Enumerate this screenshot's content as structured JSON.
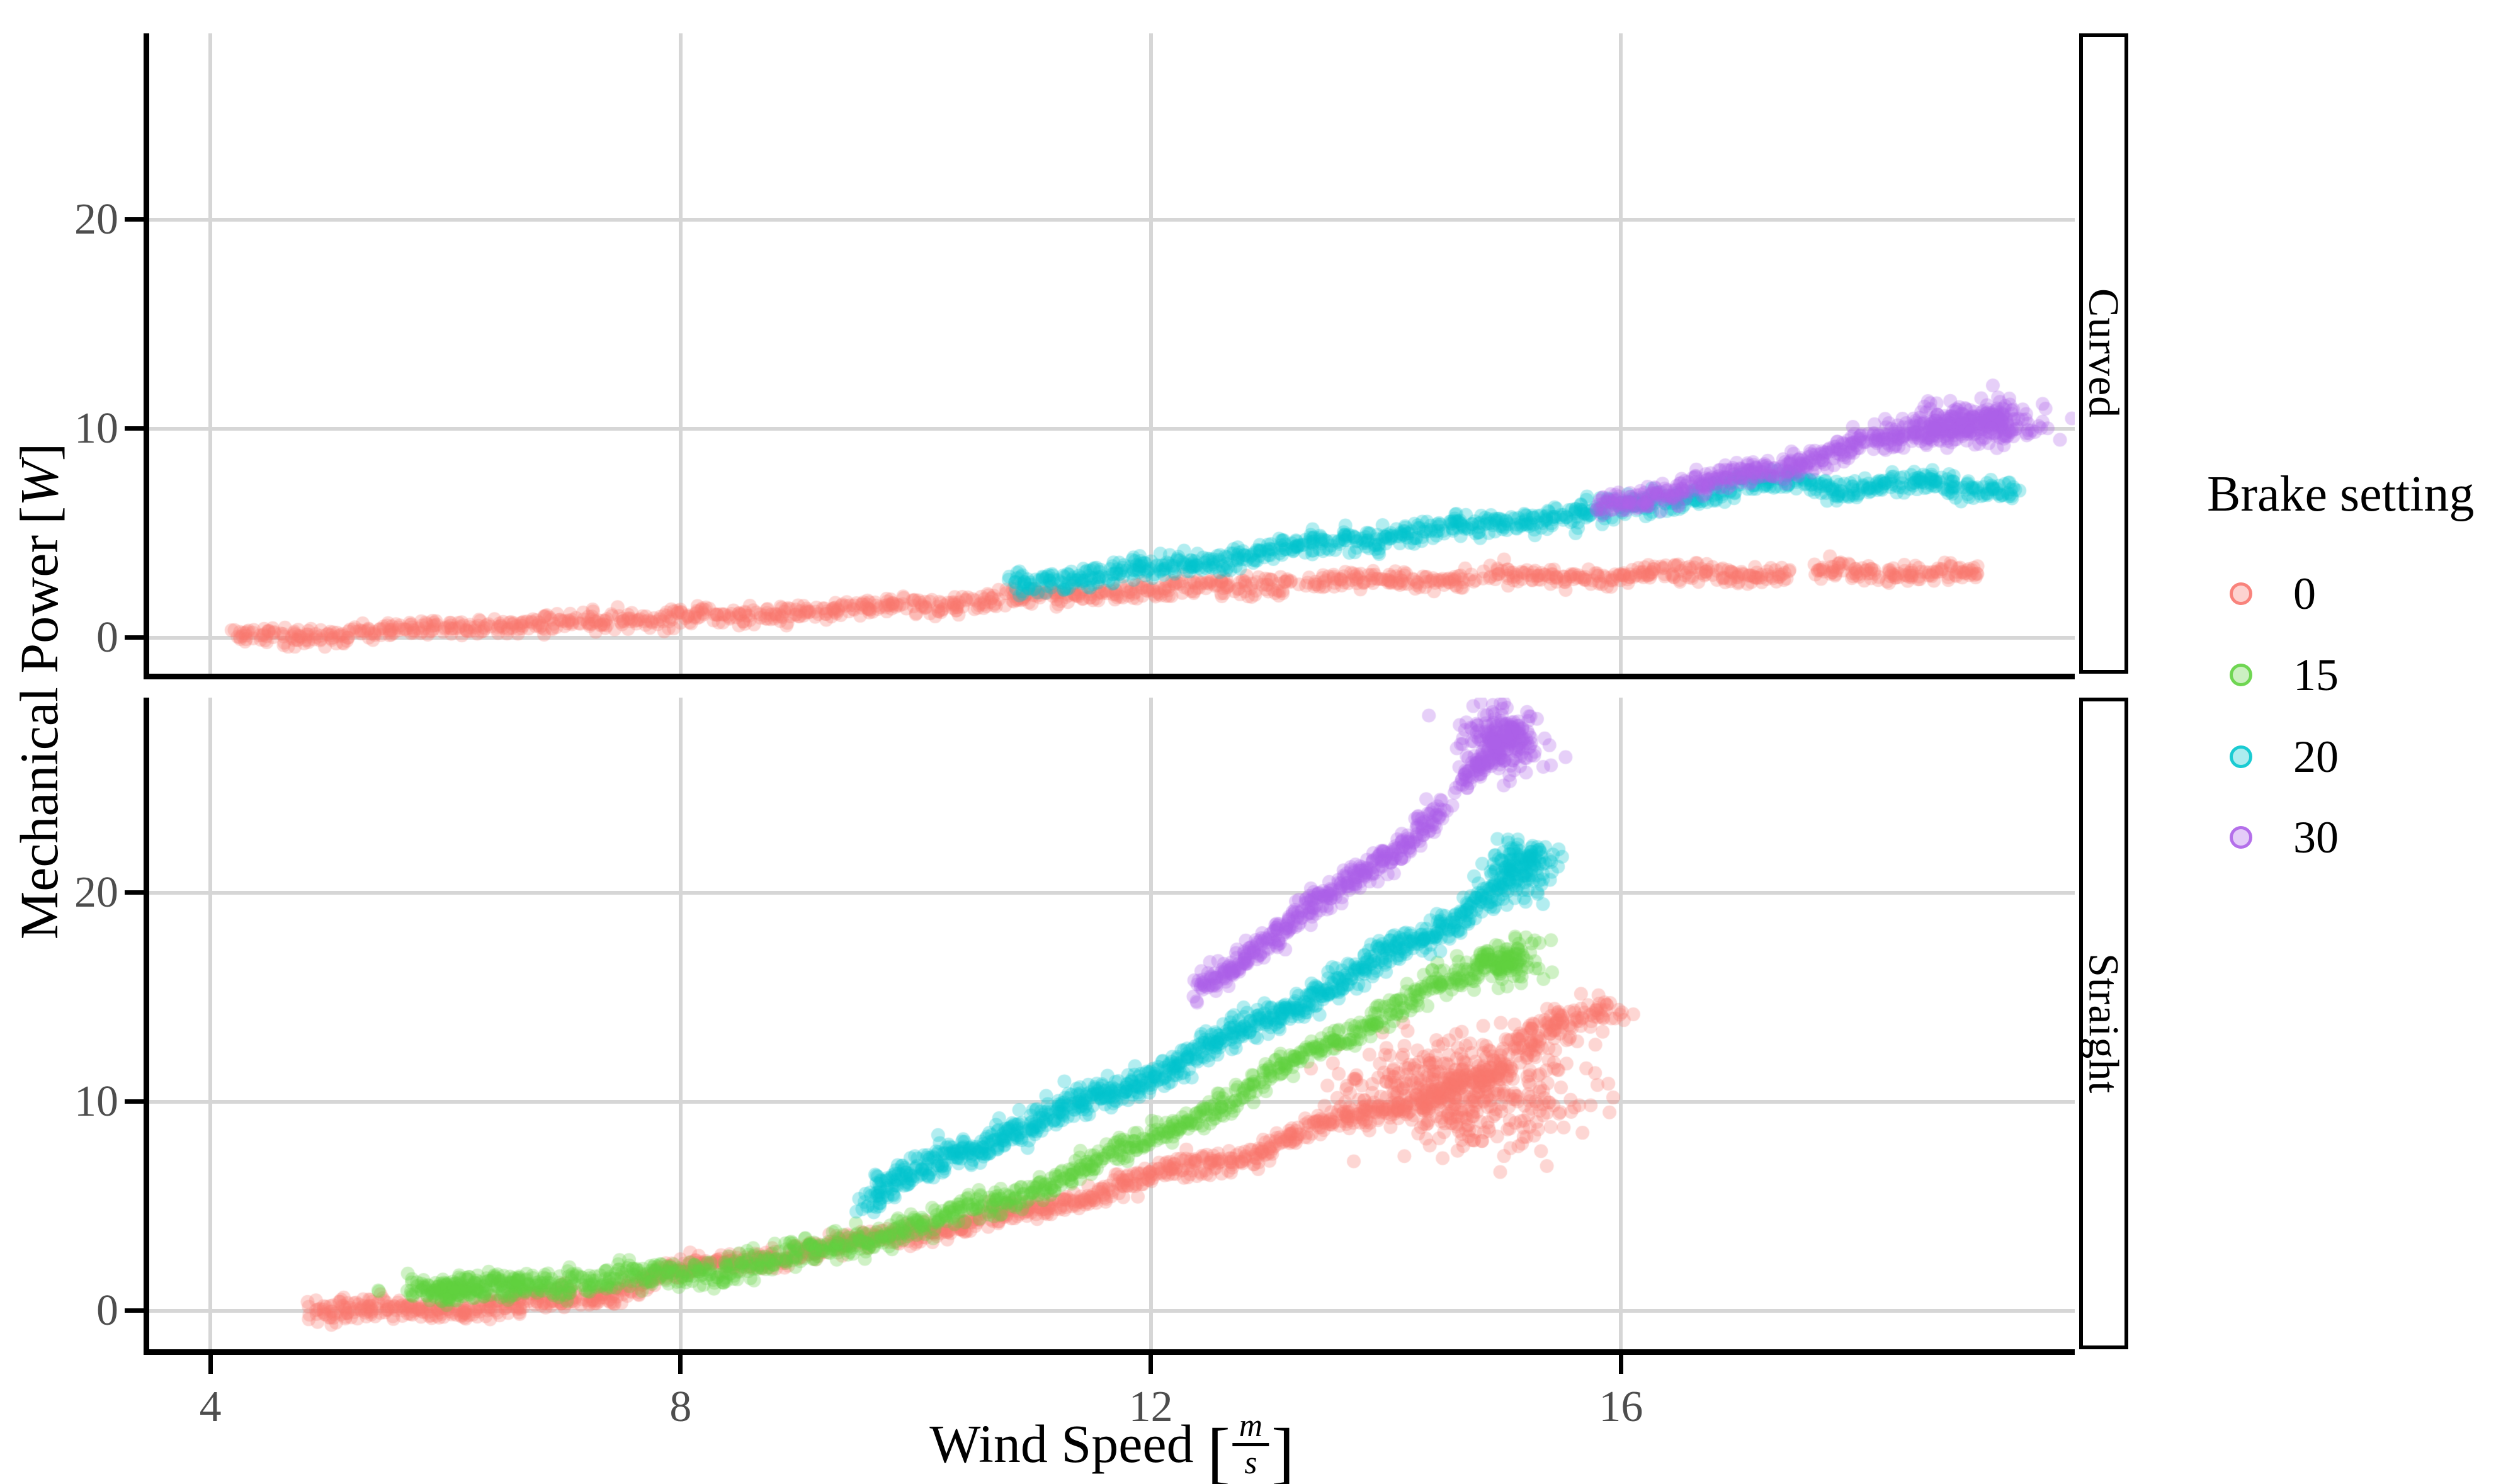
{
  "figure": {
    "y_axis_title": {
      "prefix": "Mechanical Power",
      "unit": "W"
    },
    "x_axis_title": {
      "prefix": "Wind Speed",
      "unit_numerator": "m",
      "unit_denominator": "s"
    },
    "legend_title": "Brake setting"
  },
  "chart_data": {
    "type": "scatter",
    "title": "",
    "xlabel": "Wind Speed [m/s]",
    "ylabel": "Mechanical Power [W]",
    "legend_title": "Brake setting",
    "legend_position": "right",
    "grid": "major",
    "x_ticks": [
      4,
      8,
      12,
      16
    ],
    "y_ticks": [
      0,
      10,
      20
    ],
    "xlim": [
      3.48,
      19.86
    ],
    "legend_items": [
      {
        "label": "0",
        "color": "#F8766D"
      },
      {
        "label": "15",
        "color": "#5FD13E"
      },
      {
        "label": "20",
        "color": "#00C5CC"
      },
      {
        "label": "30",
        "color": "#AC5FE8"
      }
    ],
    "facets": [
      {
        "label": "Curved",
        "ylim": [
          -1.72,
          28.9
        ],
        "series": [
          {
            "name": "0",
            "color": "#F8766D",
            "n": 1300,
            "spread": 0.22,
            "anchors": [
              [
                4.2,
                0.0
              ],
              [
                5.0,
                0.2
              ],
              [
                6.0,
                0.45
              ],
              [
                7.0,
                0.7
              ],
              [
                8.0,
                0.95
              ],
              [
                9.0,
                1.25
              ],
              [
                10.0,
                1.6
              ],
              [
                11.0,
                1.95
              ],
              [
                12.0,
                2.3
              ],
              [
                13.0,
                2.55
              ],
              [
                14.0,
                2.75
              ],
              [
                15.0,
                2.9
              ],
              [
                16.0,
                3.0
              ],
              [
                17.0,
                3.05
              ],
              [
                18.0,
                3.1
              ],
              [
                19.05,
                3.15
              ]
            ],
            "gaps": [
              [
                13.18,
                13.34
              ],
              [
                14.72,
                14.86
              ],
              [
                17.42,
                17.62
              ]
            ],
            "clusters": []
          },
          {
            "name": "20",
            "color": "#00C5CC",
            "n": 950,
            "spread": 0.26,
            "anchors": [
              [
                10.8,
                2.6
              ],
              [
                11.4,
                2.95
              ],
              [
                12.0,
                3.3
              ],
              [
                13.0,
                4.05
              ],
              [
                14.0,
                4.85
              ],
              [
                15.0,
                5.5
              ],
              [
                16.0,
                6.15
              ],
              [
                16.6,
                6.75
              ],
              [
                17.3,
                7.55
              ],
              [
                17.9,
                7.05
              ],
              [
                18.4,
                7.45
              ],
              [
                18.9,
                7.1
              ],
              [
                19.35,
                7.3
              ]
            ],
            "gaps": [],
            "clusters": []
          },
          {
            "name": "30",
            "color": "#AC5FE8",
            "n": 520,
            "spread": 0.27,
            "anchors": [
              [
                15.8,
                6.3
              ],
              [
                16.4,
                6.9
              ],
              [
                17.0,
                7.7
              ],
              [
                17.6,
                8.6
              ],
              [
                18.1,
                9.3
              ],
              [
                18.6,
                9.9
              ],
              [
                19.0,
                10.3
              ],
              [
                19.3,
                10.55
              ]
            ],
            "gaps": [],
            "clusters": [
              {
                "cx": 18.95,
                "cy": 10.25,
                "rx": 0.33,
                "ry": 0.5,
                "n": 200
              }
            ]
          }
        ]
      },
      {
        "label": "Straight",
        "ylim": [
          -1.84,
          29.33
        ],
        "series": [
          {
            "name": "0",
            "color": "#F8766D",
            "n": 1250,
            "spread": 0.26,
            "anchors": [
              [
                4.85,
                0.0
              ],
              [
                5.5,
                0.05
              ],
              [
                6.1,
                0.15
              ],
              [
                6.6,
                0.35
              ],
              [
                7.1,
                0.6
              ],
              [
                7.5,
                1.0
              ],
              [
                7.8,
                1.7
              ],
              [
                8.2,
                2.15
              ],
              [
                8.7,
                2.5
              ],
              [
                9.4,
                3.2
              ],
              [
                10.0,
                3.8
              ],
              [
                10.7,
                4.5
              ],
              [
                11.4,
                5.4
              ],
              [
                12.0,
                6.4
              ],
              [
                12.7,
                7.3
              ],
              [
                13.4,
                8.7
              ],
              [
                14.0,
                9.7
              ],
              [
                14.6,
                10.7
              ],
              [
                15.05,
                11.5
              ]
            ],
            "gaps": [],
            "clusters": [
              {
                "cx": 14.62,
                "cy": 10.5,
                "rx": 0.5,
                "ry": 1.3,
                "n": 430
              },
              {
                "cx": 15.18,
                "cy": 12.7,
                "rx": 0.1,
                "ry": 0.35,
                "n": 24
              },
              {
                "cx": 15.32,
                "cy": 13.1,
                "rx": 0.12,
                "ry": 0.4,
                "n": 34
              },
              {
                "cx": 15.55,
                "cy": 13.8,
                "rx": 0.13,
                "ry": 0.4,
                "n": 40
              },
              {
                "cx": 15.82,
                "cy": 14.35,
                "rx": 0.14,
                "ry": 0.38,
                "n": 34
              }
            ]
          },
          {
            "name": "15",
            "color": "#5FD13E",
            "n": 1150,
            "spread": 0.3,
            "anchors": [
              [
                5.9,
                0.85
              ],
              [
                6.3,
                1.1
              ],
              [
                6.8,
                1.35
              ],
              [
                7.3,
                1.45
              ],
              [
                7.8,
                1.6
              ],
              [
                8.3,
                1.95
              ],
              [
                8.8,
                2.4
              ],
              [
                9.4,
                3.1
              ],
              [
                10.0,
                4.0
              ],
              [
                10.7,
                5.2
              ],
              [
                11.4,
                6.8
              ],
              [
                12.0,
                8.3
              ],
              [
                12.7,
                10.1
              ],
              [
                13.4,
                12.5
              ],
              [
                14.0,
                14.3
              ],
              [
                14.5,
                15.7
              ],
              [
                14.9,
                16.6
              ],
              [
                15.15,
                17.2
              ]
            ],
            "gaps": [],
            "clusters": [
              {
                "cx": 6.15,
                "cy": 1.05,
                "rx": 0.3,
                "ry": 0.3,
                "n": 120
              },
              {
                "cx": 15.02,
                "cy": 16.8,
                "rx": 0.16,
                "ry": 0.5,
                "n": 80
              }
            ]
          },
          {
            "name": "20",
            "color": "#00C5CC",
            "n": 1000,
            "spread": 0.33,
            "anchors": [
              [
                9.55,
                5.1
              ],
              [
                9.9,
                6.3
              ],
              [
                10.35,
                7.6
              ],
              [
                11.2,
                9.4
              ],
              [
                12.0,
                11.3
              ],
              [
                12.5,
                12.6
              ],
              [
                13.0,
                14.0
              ],
              [
                13.5,
                15.4
              ],
              [
                14.0,
                16.9
              ],
              [
                14.45,
                18.3
              ],
              [
                14.85,
                19.9
              ],
              [
                15.1,
                21.0
              ],
              [
                15.3,
                21.9
              ]
            ],
            "gaps": [],
            "clusters": [
              {
                "cx": 15.12,
                "cy": 21.2,
                "rx": 0.17,
                "ry": 0.8,
                "n": 100
              }
            ]
          },
          {
            "name": "30",
            "color": "#AC5FE8",
            "n": 520,
            "spread": 0.3,
            "anchors": [
              [
                12.4,
                15.3
              ],
              [
                12.9,
                17.4
              ],
              [
                13.4,
                19.4
              ],
              [
                13.8,
                20.9
              ],
              [
                14.1,
                22.2
              ],
              [
                14.45,
                23.9
              ],
              [
                14.75,
                25.6
              ],
              [
                15.0,
                27.2
              ],
              [
                15.12,
                27.9
              ]
            ],
            "gaps": [
              [
                14.5,
                14.63
              ]
            ],
            "clusters": [
              {
                "cx": 14.98,
                "cy": 27.35,
                "rx": 0.18,
                "ry": 0.95,
                "n": 190
              }
            ]
          }
        ]
      }
    ]
  }
}
